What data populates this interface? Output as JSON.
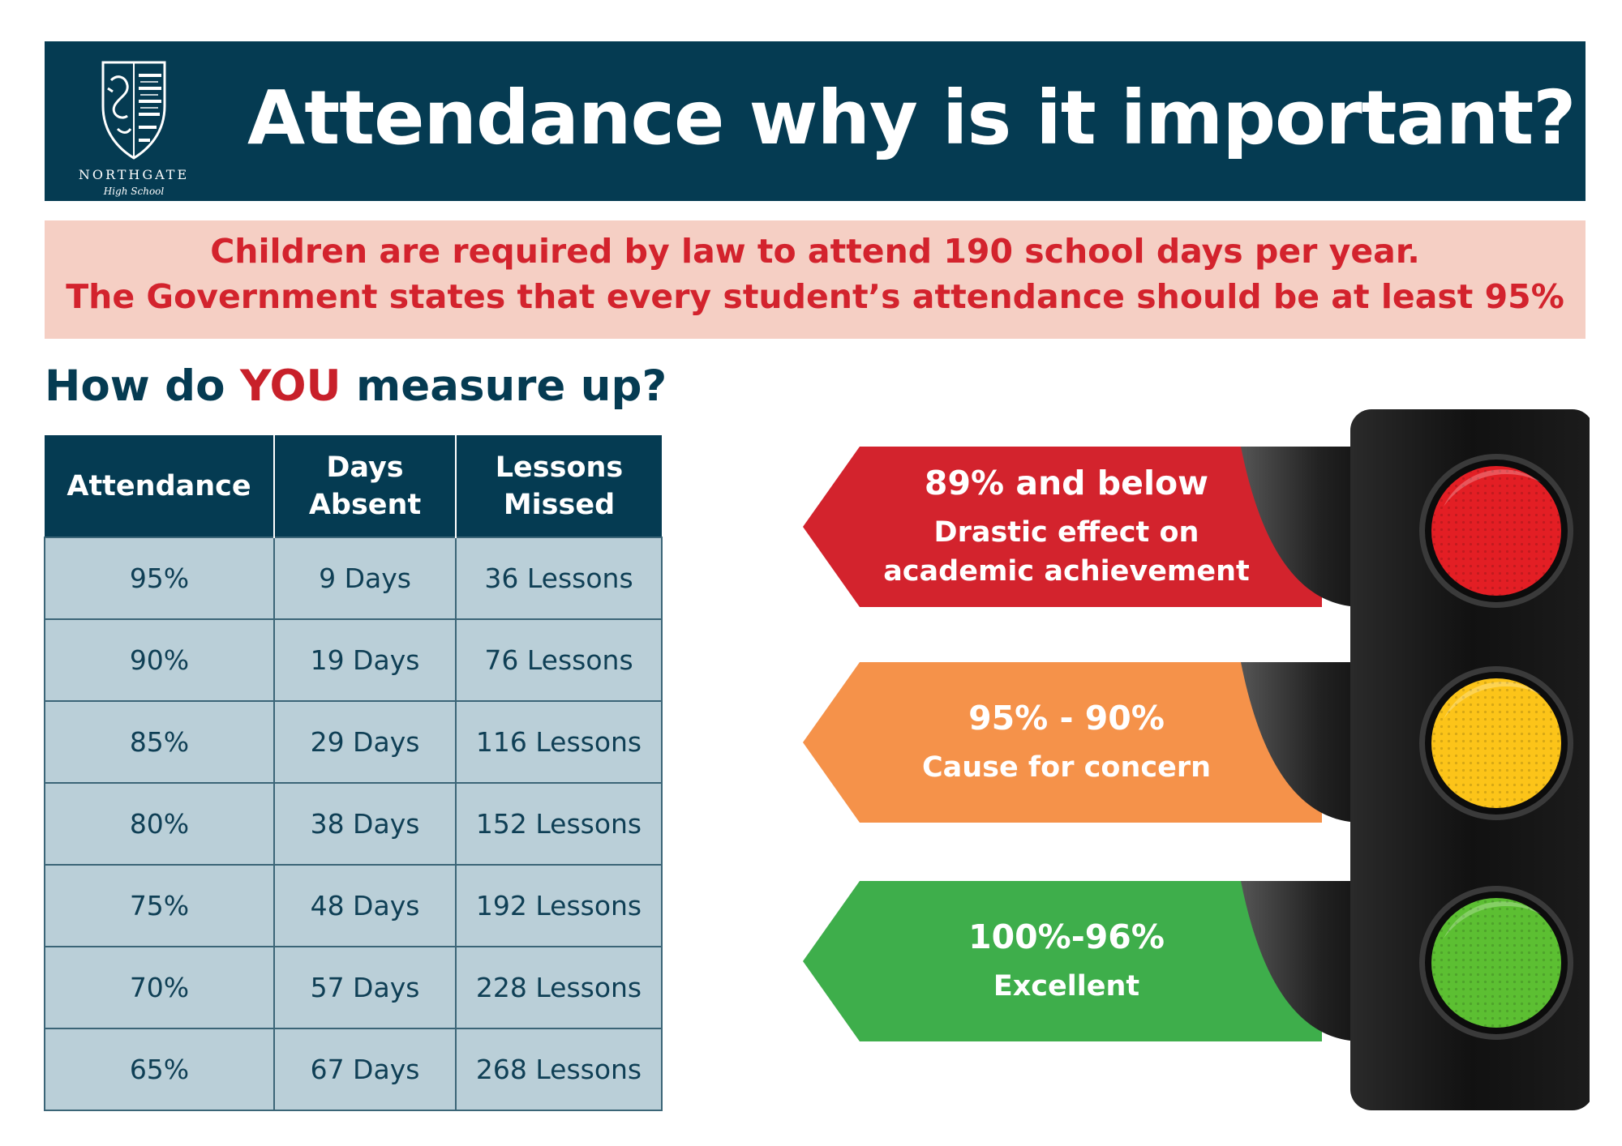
{
  "header": {
    "title": "Attendance why is it important?",
    "logo_name": "NORTHGATE",
    "logo_subtitle": "High School"
  },
  "banner": {
    "line1": "Children are required by law to attend 190 school days per year.",
    "line2": "The Government states that every student’s attendance should be at least 95%"
  },
  "subheading": {
    "prefix": "How do ",
    "accent": "YOU",
    "suffix": " measure up?"
  },
  "table": {
    "headers": [
      [
        "Attendance"
      ],
      [
        "Days",
        "Absent"
      ],
      [
        "Lessons",
        "Missed"
      ]
    ],
    "rows": [
      [
        "95%",
        "9 Days",
        "36 Lessons"
      ],
      [
        "90%",
        "19 Days",
        "76 Lessons"
      ],
      [
        "85%",
        "29 Days",
        "116 Lessons"
      ],
      [
        "80%",
        "38 Days",
        "152 Lessons"
      ],
      [
        "75%",
        "48 Days",
        "192 Lessons"
      ],
      [
        "70%",
        "57 Days",
        "228 Lessons"
      ],
      [
        "65%",
        "67 Days",
        "268 Lessons"
      ]
    ]
  },
  "traffic_light": {
    "bands": [
      {
        "range": "89% and below",
        "desc": [
          "Drastic effect on",
          "academic achievement"
        ],
        "color": "#d3232d"
      },
      {
        "range": "95% - 90%",
        "desc": [
          "Cause for concern"
        ],
        "color": "#f5924a"
      },
      {
        "range": "100%-96%",
        "desc": [
          "Excellent"
        ],
        "color": "#3eae4b"
      }
    ],
    "lamp_colors": [
      "#e31e24",
      "#fcc419",
      "#5cbf32"
    ]
  }
}
